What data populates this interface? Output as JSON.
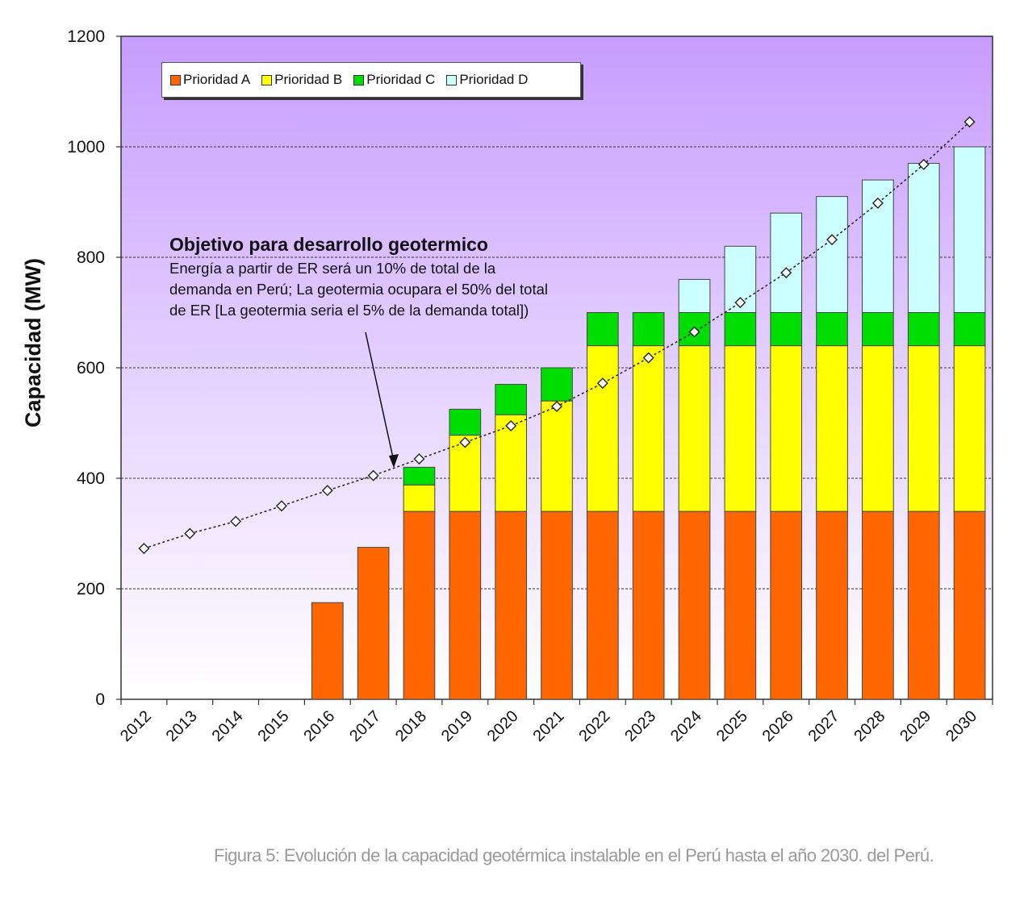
{
  "chart_data": {
    "type": "bar",
    "stacked": true,
    "ylabel": "Capacidad (MW)",
    "xlabel": "",
    "ylim": [
      0,
      1200
    ],
    "yticks": [
      0,
      200,
      400,
      600,
      800,
      1000,
      1200
    ],
    "grid": true,
    "legend_position": "top-left",
    "categories": [
      "2012",
      "2013",
      "2014",
      "2015",
      "2016",
      "2017",
      "2018",
      "2019",
      "2020",
      "2021",
      "2022",
      "2023",
      "2024",
      "2025",
      "2026",
      "2027",
      "2028",
      "2029",
      "2030"
    ],
    "series": [
      {
        "name": "Prioridad A",
        "color": "#ff6600",
        "values": [
          0,
          0,
          0,
          0,
          175,
          275,
          340,
          340,
          340,
          340,
          340,
          340,
          340,
          340,
          340,
          340,
          340,
          340,
          340
        ]
      },
      {
        "name": "Prioridad B",
        "color": "#ffff00",
        "values": [
          0,
          0,
          0,
          0,
          0,
          0,
          48,
          138,
          175,
          200,
          300,
          300,
          300,
          300,
          300,
          300,
          300,
          300,
          300
        ]
      },
      {
        "name": "Prioridad C",
        "color": "#00dd00",
        "values": [
          0,
          0,
          0,
          0,
          0,
          0,
          32,
          47,
          55,
          60,
          60,
          60,
          60,
          60,
          60,
          60,
          60,
          60,
          60
        ]
      },
      {
        "name": "Prioridad D",
        "color": "#ccffff",
        "values": [
          0,
          0,
          0,
          0,
          0,
          0,
          0,
          0,
          0,
          0,
          0,
          0,
          60,
          120,
          180,
          210,
          240,
          270,
          300
        ]
      }
    ],
    "line": {
      "style": "dotted",
      "marker": "diamond",
      "values": [
        273,
        300,
        322,
        350,
        378,
        405,
        435,
        465,
        495,
        530,
        572,
        618,
        665,
        718,
        772,
        832,
        898,
        968,
        1045
      ]
    },
    "annotation": {
      "title": "Objetivo para desarrollo geotermico",
      "text": "Energía a partir de ER será un 10% de total de la demanda en Perú; La geotermia ocupara el 50% del total de ER [La geotermia seria el 5% de la demanda total])",
      "arrow_target_year": "2017"
    }
  },
  "caption": "Figura 5: Evolución de la capacidad geotérmica instalable en el Perú hasta el año 2030. del Perú.",
  "colors": {
    "plot_top": "#c8a2ff",
    "plot_bottom": "#ffffff",
    "grid": "#333333"
  }
}
